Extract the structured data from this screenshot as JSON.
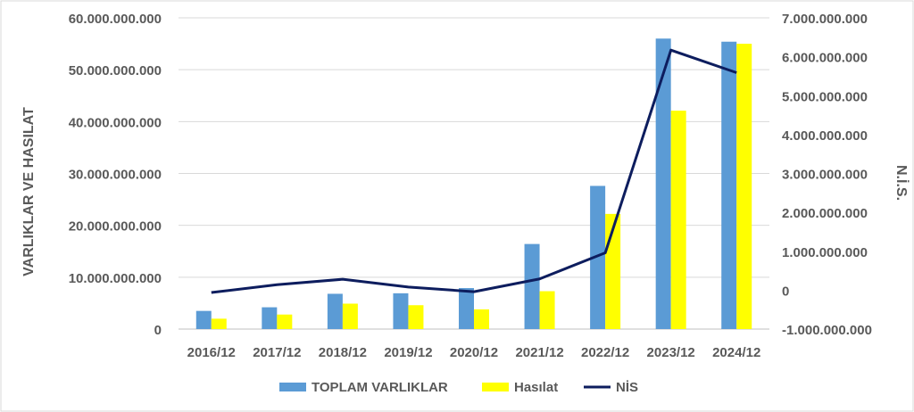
{
  "chart_data": {
    "type": "bar",
    "categories": [
      "2016/12",
      "2017/12",
      "2018/12",
      "2019/12",
      "2020/12",
      "2021/12",
      "2022/12",
      "2023/12",
      "2024/12"
    ],
    "series": [
      {
        "name": "TOPLAM VARLIKLAR",
        "type": "bar",
        "axis": "left",
        "color": "#5B9BD5",
        "values": [
          3500000000,
          4200000000,
          6800000000,
          6900000000,
          7900000000,
          16400000000,
          27600000000,
          56000000000,
          55400000000
        ]
      },
      {
        "name": "Hasılat",
        "type": "bar",
        "axis": "left",
        "color": "#FFFF00",
        "values": [
          2000000000,
          2800000000,
          4900000000,
          4600000000,
          3800000000,
          7300000000,
          22200000000,
          42100000000,
          55000000000
        ]
      },
      {
        "name": "NİS",
        "type": "line",
        "axis": "right",
        "color": "#0D1D5E",
        "values": [
          -60000000,
          140000000,
          280000000,
          80000000,
          -40000000,
          290000000,
          960000000,
          6170000000,
          5590000000
        ]
      }
    ],
    "ylabel": "VARLIKLAR VE HASILAT",
    "y2label": "N.İ.S.",
    "ylim": [
      0,
      60000000000
    ],
    "y2lim": [
      -1000000000,
      7000000000
    ],
    "yticks": [
      "0",
      "10.000.000.000",
      "20.000.000.000",
      "30.000.000.000",
      "40.000.000.000",
      "50.000.000.000",
      "60.000.000.000"
    ],
    "y2ticks": [
      "-1.000.000.000",
      "0",
      "1.000.000.000",
      "2.000.000.000",
      "3.000.000.000",
      "4.000.000.000",
      "5.000.000.000",
      "6.000.000.000",
      "7.000.000.000"
    ],
    "grid": true,
    "legend": "bottom"
  }
}
